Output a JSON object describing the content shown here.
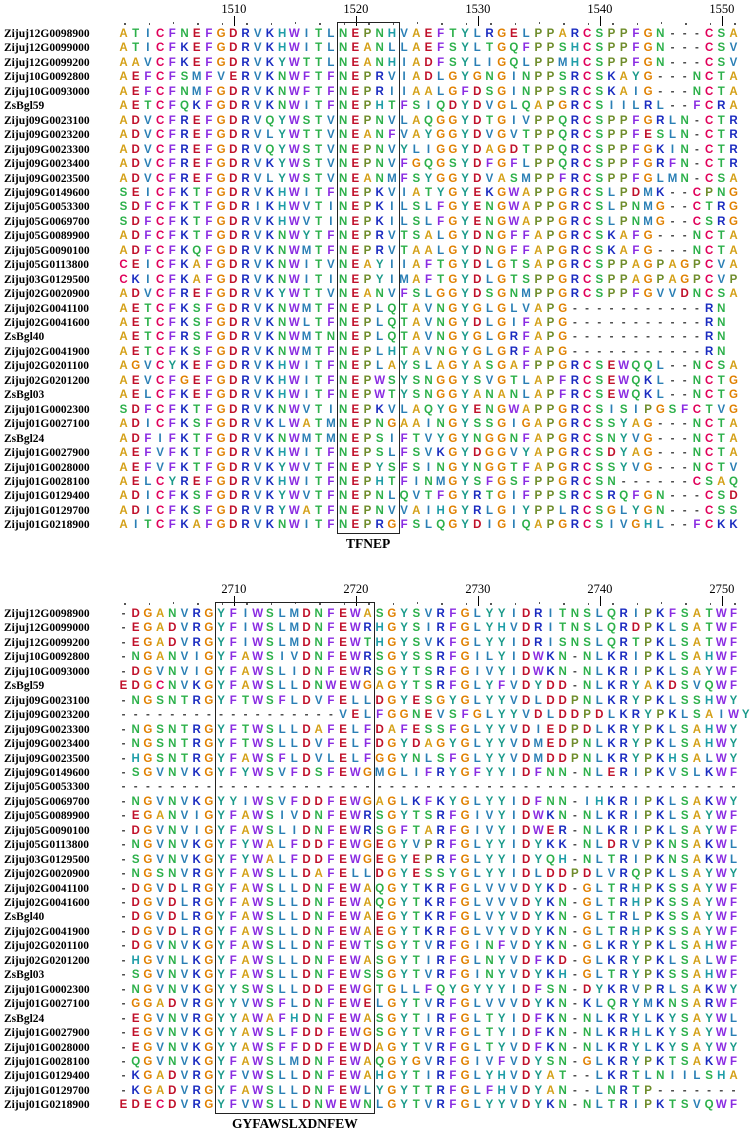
{
  "colors": {
    "A": "#d4a017",
    "V": "#2a7fb5",
    "I": "#2a7fb5",
    "L": "#2a7fb5",
    "M": "#2a7fb5",
    "F": "#8a2be2",
    "W": "#8a2be2",
    "Y": "#1a9a8a",
    "C": "#e0005a",
    "G": "#e08000",
    "P": "#6e8c2a",
    "S": "#2cb04a",
    "T": "#2cb04a",
    "N": "#2cb04a",
    "Q": "#2cb04a",
    "H": "#1f9ea8",
    "D": "#c0102a",
    "E": "#c0102a",
    "K": "#1a2bc0",
    "R": "#1a2bc0",
    "X": "#444444",
    "-": "#444444"
  },
  "blocks": [
    {
      "ruler": [
        {
          "label": "1510",
          "pos": 9
        },
        {
          "label": "1520",
          "pos": 19
        },
        {
          "label": "1530",
          "pos": 29
        },
        {
          "label": "1540",
          "pos": 39
        },
        {
          "label": "1550",
          "pos": 49
        }
      ],
      "motif": {
        "label": "TFNEP",
        "start": 18,
        "end": 22
      },
      "rows": [
        {
          "name": "Zijuj12G0098900",
          "seq": "ATICFNEFGDRVKHWITLNEPNHVAEFTYLRGELPPARCSPPFGN---CSA"
        },
        {
          "name": "Zijuj12G0099000",
          "seq": "ATICFKEFGDRVKHWITLNEANLLAEFSYLTGQFPPSHCSPPFGN---CSV"
        },
        {
          "name": "Zijuj12G0099200",
          "seq": "AAVCFKEFGDRVKYWTTLNEANHIADFSYLIGQLPPMHCSPPFGN---CSV"
        },
        {
          "name": "Zijuj10G0092800",
          "seq": "AEFCFSMFVERVKNWFTFNEPRVIADLGYGNGINPPSRCSKAYG---NCTA"
        },
        {
          "name": "Zijuj10G0093000",
          "seq": "AEFCFNMFGDRVKNWFTFNEPRIIAALGFDSGINPPSRCSKAIG---NCTA"
        },
        {
          "name": "ZsBgl59",
          "seq": "AETCFQKFGDRVKNWITFNEPHTFSIQDYDVGLQAPGRCSIILRL--FCRA"
        },
        {
          "name": "Zijuj09G0023100",
          "seq": "ADVCFREFGDRVQYWSTVNEPNVLAQGGYDTGIVPPQRCSPPFGRLN-CTR"
        },
        {
          "name": "Zijuj09G0023200",
          "seq": "ADVCFREFGDRVLYWTTVNEANFVAYGGYDVGVTPPQRCSPPFESLN-CTR"
        },
        {
          "name": "Zijuj09G0023300",
          "seq": "ADVCFREFGDRVQYWSTVNEPNVYLIGGYDAGDTPPQRCSPPFGKIN-CTR"
        },
        {
          "name": "Zijuj09G0023400",
          "seq": "ADVCFREFGDRVKYWSTVNEPNVFGQGSYDFGFLPPQRCSPPFGRFN-CTR"
        },
        {
          "name": "Zijuj09G0023500",
          "seq": "ADVCFREFGDRVLYWSTVNEANMFSYGGYDVASMPPFRCSPPFGLMN-CSA"
        },
        {
          "name": "Zijuj09G0149600",
          "seq": "SEICFKTFGDRVKHWITFNEPKVIATYGYEKGWAPPGRCSLPDMK--CPNG"
        },
        {
          "name": "Zijuj05G0053300",
          "seq": "SDFCFKTFGDRIKHWVTINEPKILSLFGYENGWAPPGRCSLPNMG--CTRG"
        },
        {
          "name": "Zijuj05G0069700",
          "seq": "SDFCFKTFGDRVKHWVTINEPKILSLFGYENGWAPPGRCSLPNMG--CSRG"
        },
        {
          "name": "Zijuj05G0089900",
          "seq": "ADFCFKTFGDRVKNWYTFNEPRVTSALGYDNGFFAPGRCSKAFG---NCTA"
        },
        {
          "name": "Zijuj05G0090100",
          "seq": "ADFCFKQFGDRVKNWMTFNEPRVTAALGYDNGFFAPGRCSKAFG---NCTA"
        },
        {
          "name": "Zijuj05G0113800",
          "seq": "CEICFKAFGDRVKNWITVNEAYIIAFTGYDLGTSAPGRCSPPAGPAGPCVA"
        },
        {
          "name": "Zijuj03G0129500",
          "seq": "CKICFKAFGDRVKNWITINEPYIMAFTGYDLGTSPPGRCSPPAGPAGPCVP"
        },
        {
          "name": "Zijuj02G0020900",
          "seq": "ADVCFREFGDRVKYWTTVNEANVFSLGGYDSGNMPPGRCSPPFGVVDNCSA"
        },
        {
          "name": "Zijuj02G0041100",
          "seq": "AETCFKSFGDRVKNWMTFNEPLQTAVNGYGLGLVAPG-----------RN"
        },
        {
          "name": "Zijuj02G0041600",
          "seq": "AETCFKSFGDRVKNWLTFNEPLQTAVNGYDLGIFAPG-----------RN"
        },
        {
          "name": "ZsBgl40",
          "seq": "AETCFRSFGDRVKNWMTNNEPLQTAVNGYGLGRFAPG-----------RN"
        },
        {
          "name": "Zijuj02G0041900",
          "seq": "AETCFKSFGDRVKNWMTFNEPLHTAVNGYGLGRFAPG-----------RN"
        },
        {
          "name": "Zijuj02G0201100",
          "seq": "AGVCYKEFGDRVKHWITFNEPLAYSLAGYASGAFPPGRCSEWQQL--NCSA"
        },
        {
          "name": "Zijuj02G0201200",
          "seq": "AEVCFGEFGDRVKHWITFNEPWSYSNGGYSVGTLAPFRCSEWQKL--NCTG"
        },
        {
          "name": "ZsBgl03",
          "seq": "AELCFKEFGDRVKHWITFNEPWTYSNGGYANANLAPFRCSEWQKL--NCTG"
        },
        {
          "name": "Zijuj01G0002300",
          "seq": "SDFCFKTFGDRVKNWVTINEPKVLAQYGYENGWAPPGRCSISIPGSFCTVG"
        },
        {
          "name": "Zijuj01G0027100",
          "seq": "ADICFKSFGDRVKLWATMNEPNGAAINGYSSGIGAPGRCSSYAG---NCTA"
        },
        {
          "name": "ZsBgl24",
          "seq": "ADFIFKTFGDRVKNWMTMNEPSIFTVYGYNGGNFAPGRCSNYVG---NCTA"
        },
        {
          "name": "Zijuj01G0027900",
          "seq": "AEFVFKTFGDRVKHWITFNEPSLFSVKGYDGGVYAPGRCSDYAG---NCTA"
        },
        {
          "name": "Zijuj01G0028000",
          "seq": "AEFVFKTFGDRVKYWVTFNEPYSFSINGYNGGTFAPGRCSSYVG---NCTV"
        },
        {
          "name": "Zijuj01G0028100",
          "seq": "AELCYREFGDRVKHWITFNEPHTFINMGYSFGSFPPGRCSN------CSAQ"
        },
        {
          "name": "Zijuj01G0129400",
          "seq": "ADICFKSFGDRVKYWVTFNEPNLQVTFGYRTGIFPPSRCSRQFGN---CSD"
        },
        {
          "name": "Zijuj01G0129700",
          "seq": "ADICFKSFGDRVRYWATFNEPNVVAIHGYRLGIYPPLRCSGLYGN---CSS"
        },
        {
          "name": "Zijuj01G0218900",
          "seq": "AITCFKAFGDRVKNWITFNEPRGFSLQGYDIGIQAPGRCSIVGHL--FCKK"
        }
      ]
    },
    {
      "ruler": [
        {
          "label": "2710",
          "pos": 9
        },
        {
          "label": "2720",
          "pos": 19
        },
        {
          "label": "2730",
          "pos": 29
        },
        {
          "label": "2740",
          "pos": 39
        },
        {
          "label": "2750",
          "pos": 49
        }
      ],
      "motif": {
        "label": "GYFAWSLXDNFEW",
        "start": 8,
        "end": 20
      },
      "rows": [
        {
          "name": "Zijuj12G0098900",
          "seq": "-DGANVRGYFIWSLMDNFEWASGYSVRFGLYYIDRITNSLQRIPKFSATWF"
        },
        {
          "name": "Zijuj12G0099000",
          "seq": "-EGADVRGYFIWSLMDNFEWRHGYSIRFGLYHVDRITNSLQRDPKLSATWF"
        },
        {
          "name": "Zijuj12G0099200",
          "seq": "-EGADVRGYFIWSLMDNFEWTHGYSVKFGLYYIDRISNSLQRTPKLSATWF"
        },
        {
          "name": "Zijuj10G0092800",
          "seq": "-NGANVIGYFAWSIVDNFEWRSGYSSRFGILYIDWKN-NLKRIPKLSAHWF"
        },
        {
          "name": "Zijuj10G0093000",
          "seq": "-DGVNVIGYFAWSLIDNFEWRSGYTSRFGIVYIDWKN-NLKRIPKLSAYWF"
        },
        {
          "name": "ZsBgl59",
          "seq": "EDGCNVKGYFAWSLLDNWEWGAGYTSRFGLYFVDYDD-NLKRYAKDSVQWF"
        },
        {
          "name": "Zijuj09G0023100",
          "seq": "-NGSNTRGYFTWSFLDVFELLDGYESGYGLYYVDLDDPNLKRYPKLSSHWY"
        },
        {
          "name": "Zijuj09G0023200",
          "seq": "------------------VELFGGNEVSFGLYYVDLDDPDLKRYPKLSAIWY"
        },
        {
          "name": "Zijuj09G0023300",
          "seq": "-NGSNTRGYFTWSLLDAFELFDAFESSFGLYYVDIEDPDLKRYPKLSAHWY"
        },
        {
          "name": "Zijuj09G0023400",
          "seq": "-NGSNTRGYFTWSLLDVFELFDGYDAGYGLYYVDMEDPNLKRYPKLSAHWY"
        },
        {
          "name": "Zijuj09G0023500",
          "seq": "-HGSNTRGYFAWSFLDVLELFGGYNLSFGLYYVDMDDPNLKRYPKHSALWY"
        },
        {
          "name": "Zijuj09G0149600",
          "seq": "-SGVNVKGYFYWSVFDSFEWGMGLIFRYGFYYIDFNN-NLERIPKVSLKWF"
        },
        {
          "name": "Zijuj05G0053300",
          "seq": "---------------------------------------------------"
        },
        {
          "name": "Zijuj05G0069700",
          "seq": "-NGVNVKGYYIWSVFDDFEWGAGLKFKYGLYYIDFNN-IHKRIPKLSAKWY"
        },
        {
          "name": "Zijuj05G0089900",
          "seq": "-EGANVIGYFAWSIVDNFEWRSGYTSRFGIVYIDWKN-NLKRIPKLSAYWF"
        },
        {
          "name": "Zijuj05G0090100",
          "seq": "-DGVNVIGYFAWSLIDNFEWRSGFTARFGIVYIDWER-NLKRIPKLSAYWF"
        },
        {
          "name": "Zijuj05G0113800",
          "seq": "-NGVNVKGYFYWALFDDFEWGEGYVPRFGLYYIDYKK-NLDRVPKNSAKWL"
        },
        {
          "name": "Zijuj03G0129500",
          "seq": "-SGVNVKGYFYWALFDDFEWGEGYEPRFGLYYIDYQH-NLTRIPKNSAKWL"
        },
        {
          "name": "Zijuj02G0020900",
          "seq": "-NGSNVRGYFAWSLLDAFELLDGYESSYGLYYIDLDDPDLVRQPKLSAYWY"
        },
        {
          "name": "Zijuj02G0041100",
          "seq": "-DGVDLRGYFAWSLLDNFEWAQGYTKRFGLVVVDYKD-GLTRHPKSSAYWF"
        },
        {
          "name": "Zijuj02G0041600",
          "seq": "-DGVDLRGYFAWSLLDNFEWAQGYTKRFGLVVVDYKN-GLTRHPKSSAYWF"
        },
        {
          "name": "ZsBgl40",
          "seq": "-DGVDLRGYFAWSLLDNFEWAEGYTKRFGLVYVDYKN-GLTRLPKSSAYWF"
        },
        {
          "name": "Zijuj02G0041900",
          "seq": "-DGVDLRGYFAWSLLDNFEWAEGYTKRFGLVYVDYKN-GLTRHPKSSAYWF"
        },
        {
          "name": "Zijuj02G0201100",
          "seq": "-DGVNVKGYFAWSLLDNFEWTSGYTVRFGINFVDYKN-GLKRYPKLSAHWF"
        },
        {
          "name": "Zijuj02G0201200",
          "seq": "-HGVNLKGYFAWSLLDNFEWASGYTIRFGLNYVDFKD-GLKRYPKLSALWF"
        },
        {
          "name": "ZsBgl03",
          "seq": "-SGVNVKGYFAWSLLDNFEWSSGYTVRFGINYVDYKH-GLTRYPKSSAHWF"
        },
        {
          "name": "Zijuj01G0002300",
          "seq": "-NGVNVKGYYSWSLLDDFEWGTGLLFQYGYYYIDFSN-DYKRVPRLSAKWY"
        },
        {
          "name": "Zijuj01G0027100",
          "seq": "-GGADVRGYYVWSFLDNFEWELGYTVRFGLVVVDYKN-KLQRYMKNSARWF"
        },
        {
          "name": "ZsBgl24",
          "seq": "-EGVNVRGYYAWAFHDNFEWASGYTIRFGLTYIDFKN-NLKRYLKYSAYWL"
        },
        {
          "name": "Zijuj01G0027900",
          "seq": "-EGVNVKGYYAWSLFDDFEWGSGYTVRFGLTYIDFKN-NLKRHLKYSAYWL"
        },
        {
          "name": "Zijuj01G0028000",
          "seq": "-EGVNVKGYYAWSFFDDFEWDAGYTVRFGLTYVDFKN-NLKRYLKYSAYWY"
        },
        {
          "name": "Zijuj01G0028100",
          "seq": "-QGVNVKGYFAWSLMDNFEWAQGYGVRFGIVFVDYSN-GLKRYPKTSAKWF"
        },
        {
          "name": "Zijuj01G0129400",
          "seq": "-KGADVRGYFVWSLLDNFEWAHGYTIRFGLYHVDYAT--LKRTLNIILSHA"
        },
        {
          "name": "Zijuj01G0129700",
          "seq": "-KGADVRGYFAWSLLDNFEWLYGYTTRFGLFHVDYAN--LNRTP-------"
        },
        {
          "name": "Zijuj01G0218900",
          "seq": "EDECDVRGYFVWSLLDNWEWNLGYTVRFGLYYVDYKN-NLTRIPKTSVQWF"
        }
      ]
    }
  ]
}
